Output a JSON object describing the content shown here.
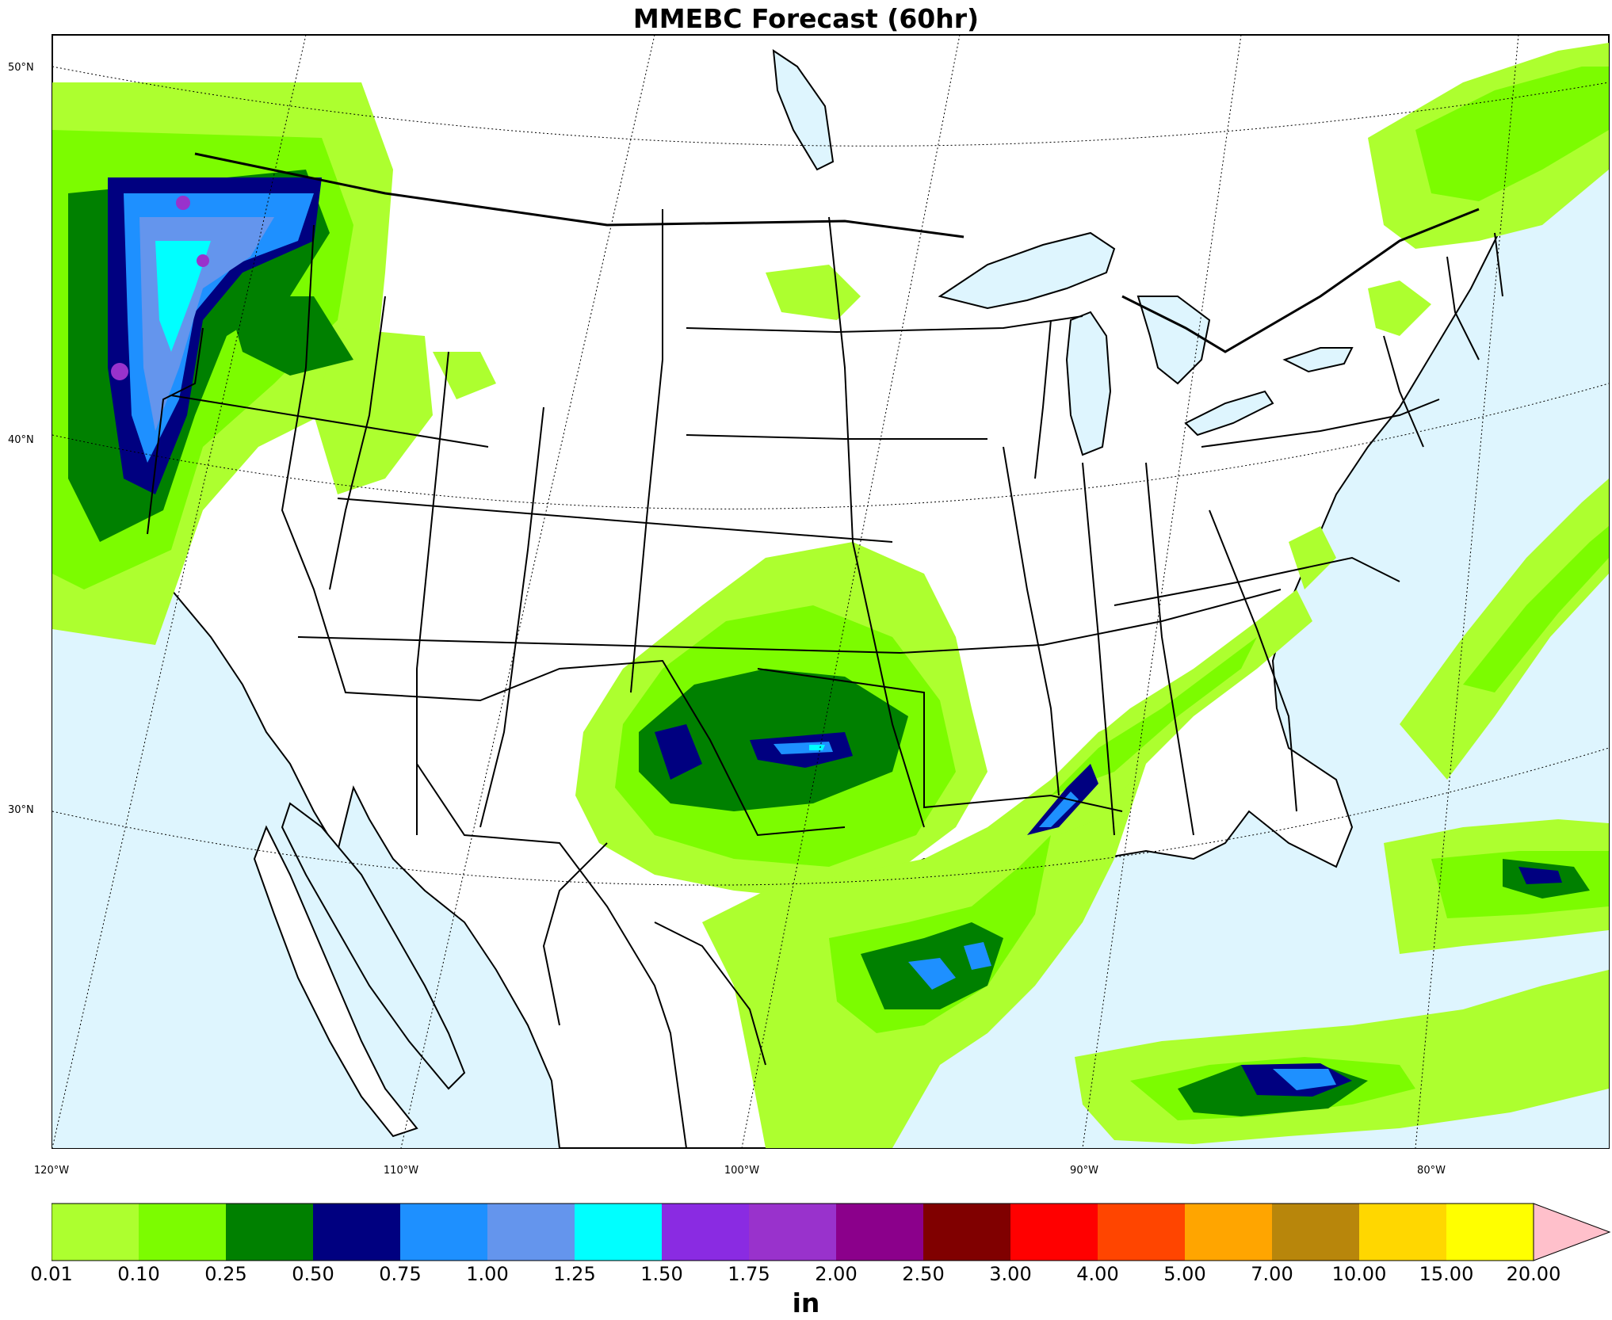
{
  "title": "MMEBC Forecast (60hr)",
  "units_label": "in",
  "lat_labels": [
    "50°N",
    "40°N",
    "30°N"
  ],
  "lon_labels": [
    "120°W",
    "110°W",
    "100°W",
    "90°W",
    "80°W"
  ],
  "colorbar": {
    "ticks": [
      "0.01",
      "0.10",
      "0.25",
      "0.50",
      "0.75",
      "1.00",
      "1.25",
      "1.50",
      "1.75",
      "2.00",
      "2.50",
      "3.00",
      "4.00",
      "5.00",
      "7.00",
      "10.00",
      "15.00",
      "20.00"
    ],
    "colors": [
      "#adff2f",
      "#7cfc00",
      "#008000",
      "#000080",
      "#1e90ff",
      "#6495ed",
      "#00ffff",
      "#8a2be2",
      "#9932cc",
      "#8b008b",
      "#800000",
      "#ff0000",
      "#ff4500",
      "#ffa500",
      "#b8860b",
      "#ffd700",
      "#ffff00"
    ],
    "extend_color": "#ffc0cb"
  },
  "map_colors": {
    "water": "#def5fe",
    "land": "#ffffff",
    "boundary": "#000000"
  }
}
